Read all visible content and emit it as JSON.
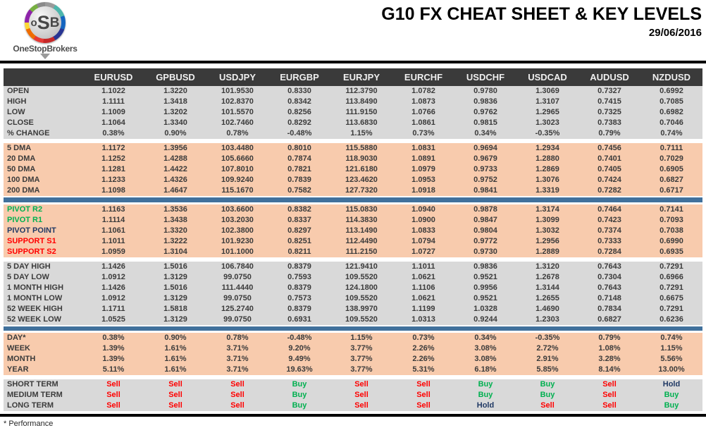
{
  "header": {
    "title": "G10 FX CHEAT SHEET & KEY LEVELS",
    "date": "29/06/2016"
  },
  "logo": {
    "letter_o": "o",
    "letter_s": "S",
    "letter_b": "B",
    "brand": "OneStopBrokers"
  },
  "footnote": "* Performance",
  "colors": {
    "header_bg": "#3a3a3a",
    "gray_band": "#d9d9d9",
    "peach_band": "#f8cbad",
    "blue_divider": "#41719c",
    "sell": "#ff0000",
    "buy": "#00b050",
    "hold": "#1f3864"
  },
  "table": {
    "columns": [
      "EURUSD",
      "GPBUSD",
      "USDJPY",
      "EURGBP",
      "EURJPY",
      "EURCHF",
      "USDCHF",
      "USDCAD",
      "AUDUSD",
      "NZDUSD"
    ],
    "signal_colors": {
      "Sell": "#ff0000",
      "Buy": "#00b050",
      "Hold": "#1f3864"
    },
    "sections": [
      {
        "id": "ohlc",
        "bg": "gray",
        "divider": "gap",
        "rows": [
          {
            "label": "OPEN",
            "values": [
              "1.1022",
              "1.3220",
              "101.9530",
              "0.8330",
              "112.3790",
              "1.0782",
              "0.9780",
              "1.3069",
              "0.7327",
              "0.6992"
            ]
          },
          {
            "label": "HIGH",
            "values": [
              "1.1111",
              "1.3418",
              "102.8370",
              "0.8342",
              "113.8490",
              "1.0873",
              "0.9836",
              "1.3107",
              "0.7415",
              "0.7085"
            ]
          },
          {
            "label": "LOW",
            "values": [
              "1.1009",
              "1.3202",
              "101.5570",
              "0.8256",
              "111.9150",
              "1.0766",
              "0.9762",
              "1.2965",
              "0.7325",
              "0.6982"
            ]
          },
          {
            "label": "CLOSE",
            "values": [
              "1.1064",
              "1.3340",
              "102.7460",
              "0.8292",
              "113.6830",
              "1.0861",
              "0.9815",
              "1.3023",
              "0.7383",
              "0.7046"
            ]
          },
          {
            "label": "% CHANGE",
            "values": [
              "0.38%",
              "0.90%",
              "0.78%",
              "-0.48%",
              "1.15%",
              "0.73%",
              "0.34%",
              "-0.35%",
              "0.79%",
              "0.74%"
            ]
          }
        ]
      },
      {
        "id": "dma",
        "bg": "peach",
        "divider": "bar",
        "rows": [
          {
            "label": "5 DMA",
            "values": [
              "1.1172",
              "1.3956",
              "103.4480",
              "0.8010",
              "115.5880",
              "1.0831",
              "0.9694",
              "1.2934",
              "0.7456",
              "0.7111"
            ]
          },
          {
            "label": "20 DMA",
            "values": [
              "1.1252",
              "1.4288",
              "105.6660",
              "0.7874",
              "118.9030",
              "1.0891",
              "0.9679",
              "1.2880",
              "0.7401",
              "0.7029"
            ]
          },
          {
            "label": "50 DMA",
            "values": [
              "1.1281",
              "1.4422",
              "107.8010",
              "0.7821",
              "121.6180",
              "1.0979",
              "0.9733",
              "1.2869",
              "0.7405",
              "0.6905"
            ]
          },
          {
            "label": "100 DMA",
            "values": [
              "1.1233",
              "1.4326",
              "109.9240",
              "0.7839",
              "123.4620",
              "1.0953",
              "0.9752",
              "1.3076",
              "0.7424",
              "0.6827"
            ]
          },
          {
            "label": "200 DMA",
            "values": [
              "1.1098",
              "1.4647",
              "115.1670",
              "0.7582",
              "127.7320",
              "1.0918",
              "0.9841",
              "1.3319",
              "0.7282",
              "0.6717"
            ]
          }
        ]
      },
      {
        "id": "pivots",
        "bg": "peach",
        "divider": "gap",
        "rows": [
          {
            "label": "PIVOT R2",
            "color": "green",
            "values": [
              "1.1163",
              "1.3536",
              "103.6600",
              "0.8382",
              "115.0830",
              "1.0940",
              "0.9878",
              "1.3174",
              "0.7464",
              "0.7141"
            ]
          },
          {
            "label": "PIVOT R1",
            "color": "green",
            "values": [
              "1.1114",
              "1.3438",
              "103.2030",
              "0.8337",
              "114.3830",
              "1.0900",
              "0.9847",
              "1.3099",
              "0.7423",
              "0.7093"
            ]
          },
          {
            "label": "PIVOT POINT",
            "color": "navy",
            "values": [
              "1.1061",
              "1.3320",
              "102.3800",
              "0.8297",
              "113.1490",
              "1.0833",
              "0.9804",
              "1.3032",
              "0.7374",
              "0.7038"
            ]
          },
          {
            "label": "SUPPORT S1",
            "color": "red",
            "values": [
              "1.1011",
              "1.3222",
              "101.9230",
              "0.8251",
              "112.4490",
              "1.0794",
              "0.9772",
              "1.2956",
              "0.7333",
              "0.6990"
            ]
          },
          {
            "label": "SUPPORT S2",
            "color": "red",
            "values": [
              "1.0959",
              "1.3104",
              "101.1000",
              "0.8211",
              "111.2150",
              "1.0727",
              "0.9730",
              "1.2889",
              "0.7284",
              "0.6935"
            ]
          }
        ]
      },
      {
        "id": "ranges",
        "bg": "gray",
        "divider": "bar",
        "rows": [
          {
            "label": "5 DAY HIGH",
            "values": [
              "1.1426",
              "1.5016",
              "106.7840",
              "0.8379",
              "121.9410",
              "1.1011",
              "0.9836",
              "1.3120",
              "0.7643",
              "0.7291"
            ]
          },
          {
            "label": "5 DAY LOW",
            "values": [
              "1.0912",
              "1.3129",
              "99.0750",
              "0.7593",
              "109.5520",
              "1.0621",
              "0.9521",
              "1.2678",
              "0.7304",
              "0.6966"
            ]
          },
          {
            "label": "1 MONTH HIGH",
            "values": [
              "1.1426",
              "1.5016",
              "111.4440",
              "0.8379",
              "124.1800",
              "1.1106",
              "0.9956",
              "1.3144",
              "0.7643",
              "0.7291"
            ]
          },
          {
            "label": "1 MONTH LOW",
            "values": [
              "1.0912",
              "1.3129",
              "99.0750",
              "0.7573",
              "109.5520",
              "1.0621",
              "0.9521",
              "1.2655",
              "0.7148",
              "0.6675"
            ]
          },
          {
            "label": "52 WEEK HIGH",
            "values": [
              "1.1711",
              "1.5818",
              "125.2740",
              "0.8379",
              "138.9970",
              "1.1199",
              "1.0328",
              "1.4690",
              "0.7834",
              "0.7291"
            ]
          },
          {
            "label": "52 WEEK LOW",
            "values": [
              "1.0525",
              "1.3129",
              "99.0750",
              "0.6931",
              "109.5520",
              "1.0313",
              "0.9244",
              "1.2303",
              "0.6827",
              "0.6236"
            ]
          }
        ]
      },
      {
        "id": "performance",
        "bg": "peach",
        "divider": "gap",
        "rows": [
          {
            "label": "DAY*",
            "values": [
              "0.38%",
              "0.90%",
              "0.78%",
              "-0.48%",
              "1.15%",
              "0.73%",
              "0.34%",
              "-0.35%",
              "0.79%",
              "0.74%"
            ]
          },
          {
            "label": "WEEK",
            "values": [
              "1.39%",
              "1.61%",
              "3.71%",
              "9.20%",
              "3.77%",
              "2.26%",
              "3.08%",
              "2.72%",
              "1.08%",
              "1.15%"
            ]
          },
          {
            "label": "MONTH",
            "values": [
              "1.39%",
              "1.61%",
              "3.71%",
              "9.49%",
              "3.77%",
              "2.26%",
              "3.08%",
              "2.91%",
              "3.28%",
              "5.56%"
            ]
          },
          {
            "label": "YEAR",
            "values": [
              "5.11%",
              "1.61%",
              "3.71%",
              "19.63%",
              "3.77%",
              "5.31%",
              "6.18%",
              "5.85%",
              "8.14%",
              "13.00%"
            ]
          }
        ]
      },
      {
        "id": "signals",
        "bg": "gray",
        "divider": null,
        "rows": [
          {
            "label": "SHORT TERM",
            "values": [
              "Sell",
              "Sell",
              "Sell",
              "Buy",
              "Sell",
              "Sell",
              "Buy",
              "Buy",
              "Sell",
              "Hold"
            ]
          },
          {
            "label": "MEDIUM TERM",
            "values": [
              "Sell",
              "Sell",
              "Sell",
              "Buy",
              "Sell",
              "Sell",
              "Buy",
              "Buy",
              "Sell",
              "Buy"
            ]
          },
          {
            "label": "LONG TERM",
            "values": [
              "Sell",
              "Sell",
              "Sell",
              "Buy",
              "Sell",
              "Sell",
              "Hold",
              "Sell",
              "Sell",
              "Buy"
            ]
          }
        ]
      }
    ]
  }
}
